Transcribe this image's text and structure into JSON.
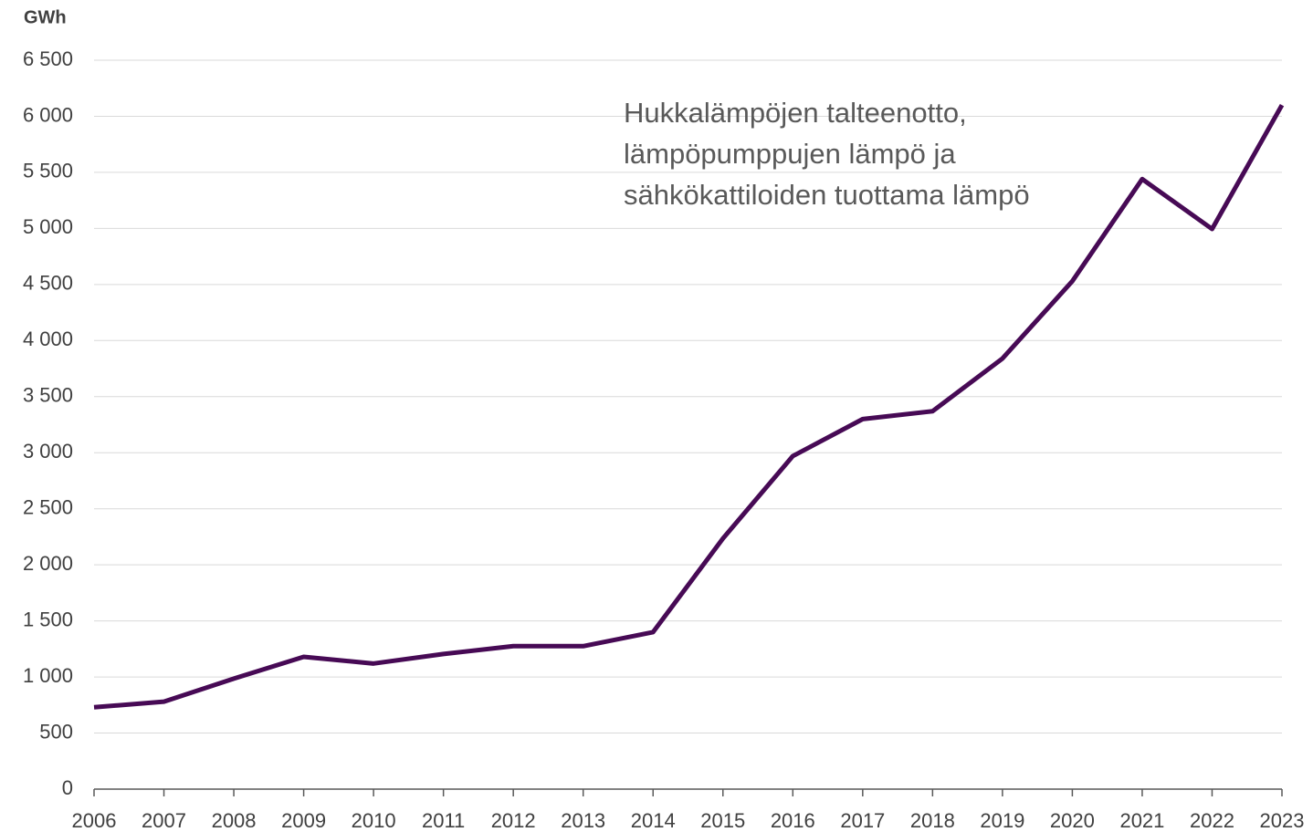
{
  "chart_data": {
    "type": "line",
    "y_label": "GWh",
    "annotation": [
      "Hukkalämpöjen talteenotto,",
      "lämpöpumppujen lämpö ja",
      "sähkökattiloiden tuottama lämpö"
    ],
    "categories": [
      "2006",
      "2007",
      "2008",
      "2009",
      "2010",
      "2011",
      "2012",
      "2013",
      "2014",
      "2015",
      "2016",
      "2017",
      "2018",
      "2019",
      "2020",
      "2021",
      "2022",
      "2023"
    ],
    "values": [
      730,
      780,
      985,
      1180,
      1120,
      1205,
      1275,
      1275,
      1400,
      2235,
      2970,
      3300,
      3370,
      3840,
      4530,
      5440,
      4995,
      6100
    ],
    "color": "#470a55",
    "ylim": [
      0,
      6500
    ],
    "yticks": [
      0,
      500,
      {
        "value": 1000,
        "label": "1 000"
      },
      {
        "value": 1500,
        "label": "1 500"
      },
      {
        "value": 2000,
        "label": "2 000"
      },
      {
        "value": 2500,
        "label": "2 500"
      },
      {
        "value": 3000,
        "label": "3 000"
      },
      {
        "value": 3500,
        "label": "3 500"
      },
      {
        "value": 4000,
        "label": "4 000"
      },
      {
        "value": 4500,
        "label": "4 500"
      },
      {
        "value": 5000,
        "label": "5 000"
      },
      {
        "value": 5500,
        "label": "5 500"
      },
      {
        "value": 6000,
        "label": "6 000"
      },
      {
        "value": 6500,
        "label": "6 500"
      }
    ],
    "grid": true
  }
}
